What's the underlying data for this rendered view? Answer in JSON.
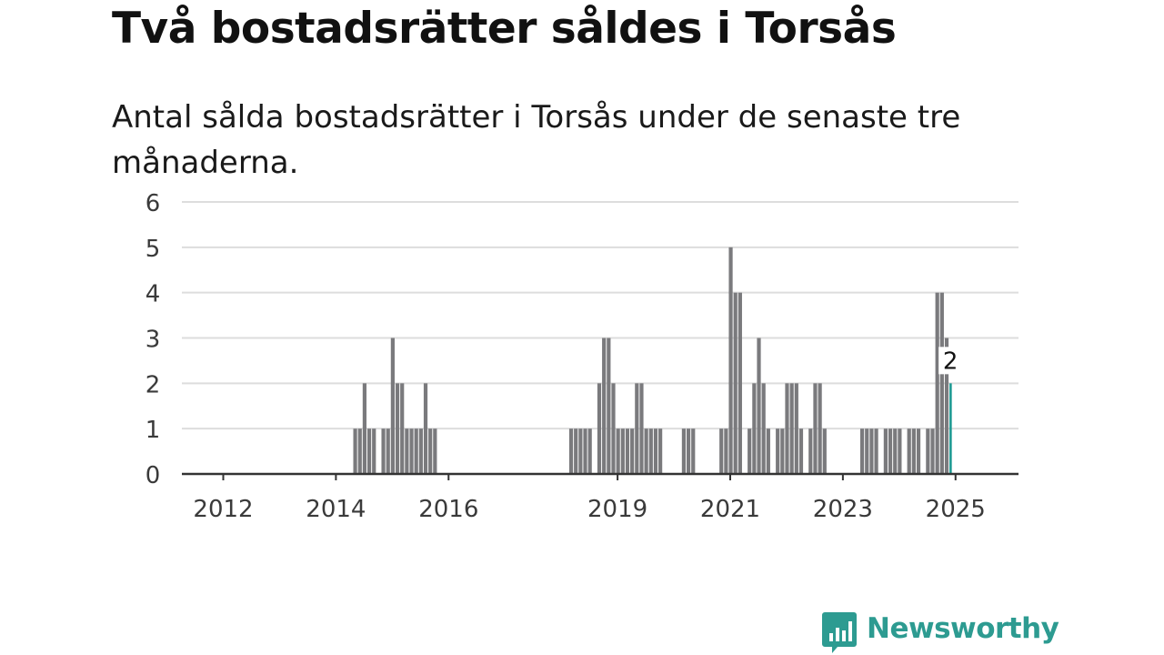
{
  "title": "Två bostadsrätter såldes i Torsås",
  "subtitle": "Antal sålda bostadsrätter i Torsås under de senaste tre månaderna.",
  "brand": {
    "name": "Newsworthy",
    "icon": "bar-chart-speech-bubble-icon",
    "color": "#2d9b91"
  },
  "chart_data": {
    "type": "bar",
    "x_unit": "month",
    "x_ticks": [
      "2012",
      "2014",
      "2016",
      "2019",
      "2021",
      "2023",
      "2025"
    ],
    "y_ticks": [
      "0",
      "1",
      "2",
      "3",
      "4",
      "5",
      "6"
    ],
    "ylim": [
      0,
      6
    ],
    "grid": true,
    "bar_color": "#7a7a7d",
    "highlight_color": "#1e9a93",
    "highlight": {
      "x": "2025-06",
      "value": 2,
      "label": "2"
    },
    "series": [
      {
        "x": "2014-11",
        "value": 1
      },
      {
        "x": "2014-12",
        "value": 1
      },
      {
        "x": "2015-01",
        "value": 2
      },
      {
        "x": "2015-02",
        "value": 1
      },
      {
        "x": "2015-03",
        "value": 1
      },
      {
        "x": "2015-05",
        "value": 1
      },
      {
        "x": "2015-06",
        "value": 1
      },
      {
        "x": "2015-07",
        "value": 3
      },
      {
        "x": "2015-08",
        "value": 2
      },
      {
        "x": "2015-09",
        "value": 2
      },
      {
        "x": "2015-10",
        "value": 1
      },
      {
        "x": "2015-11",
        "value": 1
      },
      {
        "x": "2015-12",
        "value": 1
      },
      {
        "x": "2016-01",
        "value": 1
      },
      {
        "x": "2016-02",
        "value": 2
      },
      {
        "x": "2016-03",
        "value": 1
      },
      {
        "x": "2016-04",
        "value": 1
      },
      {
        "x": "2018-09",
        "value": 1
      },
      {
        "x": "2018-10",
        "value": 1
      },
      {
        "x": "2018-11",
        "value": 1
      },
      {
        "x": "2018-12",
        "value": 1
      },
      {
        "x": "2019-01",
        "value": 1
      },
      {
        "x": "2019-03",
        "value": 2
      },
      {
        "x": "2019-04",
        "value": 3
      },
      {
        "x": "2019-05",
        "value": 3
      },
      {
        "x": "2019-06",
        "value": 2
      },
      {
        "x": "2019-07",
        "value": 1
      },
      {
        "x": "2019-08",
        "value": 1
      },
      {
        "x": "2019-09",
        "value": 1
      },
      {
        "x": "2019-10",
        "value": 1
      },
      {
        "x": "2019-11",
        "value": 2
      },
      {
        "x": "2019-12",
        "value": 2
      },
      {
        "x": "2020-01",
        "value": 1
      },
      {
        "x": "2020-02",
        "value": 1
      },
      {
        "x": "2020-03",
        "value": 1
      },
      {
        "x": "2020-04",
        "value": 1
      },
      {
        "x": "2020-09",
        "value": 1
      },
      {
        "x": "2020-10",
        "value": 1
      },
      {
        "x": "2020-11",
        "value": 1
      },
      {
        "x": "2021-05",
        "value": 1
      },
      {
        "x": "2021-06",
        "value": 1
      },
      {
        "x": "2021-07",
        "value": 5
      },
      {
        "x": "2021-08",
        "value": 4
      },
      {
        "x": "2021-09",
        "value": 4
      },
      {
        "x": "2021-11",
        "value": 1
      },
      {
        "x": "2021-12",
        "value": 2
      },
      {
        "x": "2022-01",
        "value": 3
      },
      {
        "x": "2022-02",
        "value": 2
      },
      {
        "x": "2022-03",
        "value": 1
      },
      {
        "x": "2022-05",
        "value": 1
      },
      {
        "x": "2022-06",
        "value": 1
      },
      {
        "x": "2022-07",
        "value": 2
      },
      {
        "x": "2022-08",
        "value": 2
      },
      {
        "x": "2022-09",
        "value": 2
      },
      {
        "x": "2022-10",
        "value": 1
      },
      {
        "x": "2022-12",
        "value": 1
      },
      {
        "x": "2023-01",
        "value": 2
      },
      {
        "x": "2023-02",
        "value": 2
      },
      {
        "x": "2023-03",
        "value": 1
      },
      {
        "x": "2023-11",
        "value": 1
      },
      {
        "x": "2023-12",
        "value": 1
      },
      {
        "x": "2024-01",
        "value": 1
      },
      {
        "x": "2024-02",
        "value": 1
      },
      {
        "x": "2024-04",
        "value": 1
      },
      {
        "x": "2024-05",
        "value": 1
      },
      {
        "x": "2024-06",
        "value": 1
      },
      {
        "x": "2024-07",
        "value": 1
      },
      {
        "x": "2024-09",
        "value": 1
      },
      {
        "x": "2024-10",
        "value": 1
      },
      {
        "x": "2024-11",
        "value": 1
      },
      {
        "x": "2025-01",
        "value": 1
      },
      {
        "x": "2025-02",
        "value": 1
      },
      {
        "x": "2025-03",
        "value": 4
      },
      {
        "x": "2025-04",
        "value": 4
      },
      {
        "x": "2025-05",
        "value": 3
      },
      {
        "x": "2025-06",
        "value": 2
      }
    ]
  }
}
